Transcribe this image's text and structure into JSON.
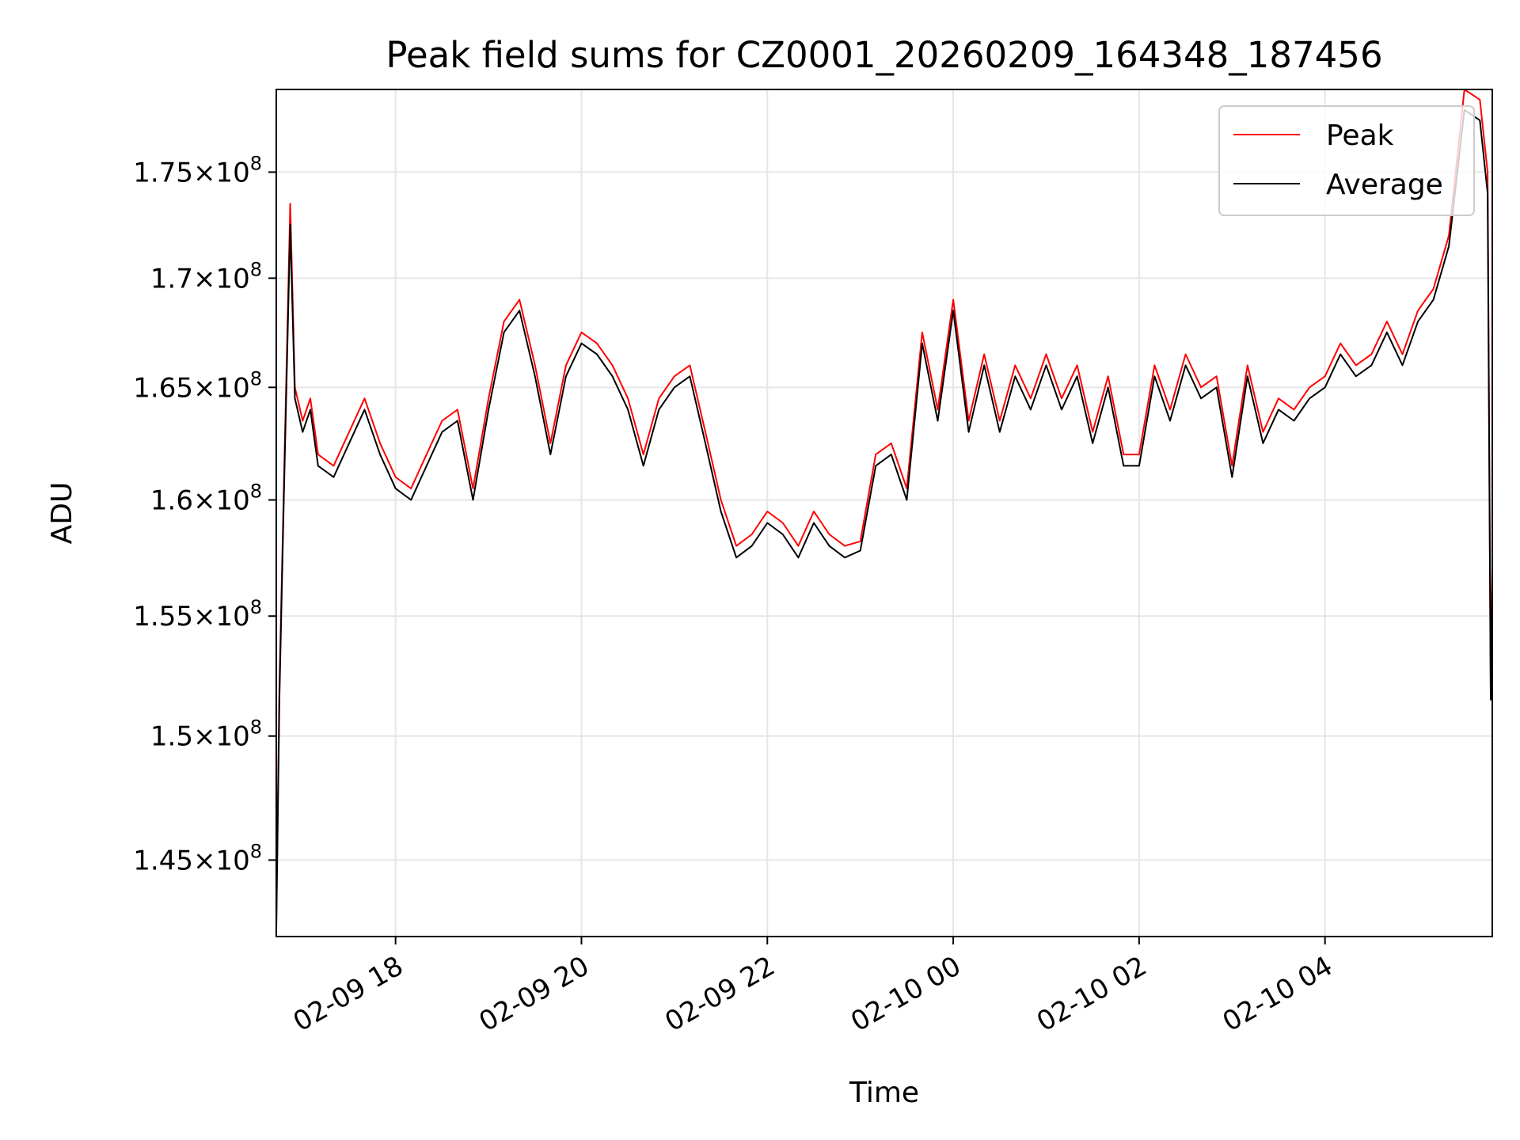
{
  "chart_data": {
    "type": "line",
    "title": "Peak field sums for CZ0001_20260209_164348_187456",
    "xlabel": "Time",
    "ylabel": "ADU",
    "x_axis_type": "datetime",
    "xlim": [
      "2026-02-09 16:43",
      "2026-02-10 05:48"
    ],
    "ylim": [
      142000000,
      179000000
    ],
    "y_scale": "log",
    "grid": true,
    "legend_position": "upper right",
    "x_ticks": [
      {
        "value": "2026-02-09 18:00",
        "label": "02-09 18"
      },
      {
        "value": "2026-02-09 20:00",
        "label": "02-09 20"
      },
      {
        "value": "2026-02-09 22:00",
        "label": "02-09 22"
      },
      {
        "value": "2026-02-10 00:00",
        "label": "02-10 00"
      },
      {
        "value": "2026-02-10 02:00",
        "label": "02-10 02"
      },
      {
        "value": "2026-02-10 04:00",
        "label": "02-10 04"
      }
    ],
    "y_ticks": [
      {
        "value": 145000000,
        "mantissa": "1.45",
        "exponent": "8"
      },
      {
        "value": 150000000,
        "mantissa": "1.5",
        "exponent": "8"
      },
      {
        "value": 155000000,
        "mantissa": "1.55",
        "exponent": "8"
      },
      {
        "value": 160000000,
        "mantissa": "1.6",
        "exponent": "8"
      },
      {
        "value": 165000000,
        "mantissa": "1.65",
        "exponent": "8"
      },
      {
        "value": 170000000,
        "mantissa": "1.7",
        "exponent": "8"
      },
      {
        "value": 175000000,
        "mantissa": "1.75",
        "exponent": "8"
      }
    ],
    "series": [
      {
        "name": "Peak",
        "color": "#ff0000",
        "x": [
          "2026-02-09 16:43",
          "2026-02-09 16:45",
          "2026-02-09 16:48",
          "2026-02-09 16:52",
          "2026-02-09 16:55",
          "2026-02-09 17:00",
          "2026-02-09 17:05",
          "2026-02-09 17:10",
          "2026-02-09 17:20",
          "2026-02-09 17:30",
          "2026-02-09 17:40",
          "2026-02-09 17:50",
          "2026-02-09 18:00",
          "2026-02-09 18:10",
          "2026-02-09 18:20",
          "2026-02-09 18:30",
          "2026-02-09 18:40",
          "2026-02-09 18:50",
          "2026-02-09 19:00",
          "2026-02-09 19:10",
          "2026-02-09 19:20",
          "2026-02-09 19:30",
          "2026-02-09 19:40",
          "2026-02-09 19:50",
          "2026-02-09 20:00",
          "2026-02-09 20:10",
          "2026-02-09 20:20",
          "2026-02-09 20:30",
          "2026-02-09 20:40",
          "2026-02-09 20:50",
          "2026-02-09 21:00",
          "2026-02-09 21:10",
          "2026-02-09 21:20",
          "2026-02-09 21:30",
          "2026-02-09 21:40",
          "2026-02-09 21:50",
          "2026-02-09 22:00",
          "2026-02-09 22:10",
          "2026-02-09 22:20",
          "2026-02-09 22:30",
          "2026-02-09 22:40",
          "2026-02-09 22:50",
          "2026-02-09 23:00",
          "2026-02-09 23:10",
          "2026-02-09 23:20",
          "2026-02-09 23:30",
          "2026-02-09 23:40",
          "2026-02-09 23:50",
          "2026-02-10 00:00",
          "2026-02-10 00:10",
          "2026-02-10 00:20",
          "2026-02-10 00:30",
          "2026-02-10 00:40",
          "2026-02-10 00:50",
          "2026-02-10 01:00",
          "2026-02-10 01:10",
          "2026-02-10 01:20",
          "2026-02-10 01:30",
          "2026-02-10 01:40",
          "2026-02-10 01:50",
          "2026-02-10 02:00",
          "2026-02-10 02:10",
          "2026-02-10 02:20",
          "2026-02-10 02:30",
          "2026-02-10 02:40",
          "2026-02-10 02:50",
          "2026-02-10 03:00",
          "2026-02-10 03:10",
          "2026-02-10 03:20",
          "2026-02-10 03:30",
          "2026-02-10 03:40",
          "2026-02-10 03:50",
          "2026-02-10 04:00",
          "2026-02-10 04:10",
          "2026-02-10 04:20",
          "2026-02-10 04:30",
          "2026-02-10 04:40",
          "2026-02-10 04:50",
          "2026-02-10 05:00",
          "2026-02-10 05:10",
          "2026-02-10 05:20",
          "2026-02-10 05:30",
          "2026-02-10 05:40",
          "2026-02-10 05:45",
          "2026-02-10 05:47",
          "2026-02-10 05:48"
        ],
        "values": [
          142500000,
          152000000,
          161000000,
          173500000,
          165000000,
          163500000,
          164500000,
          162000000,
          161500000,
          163000000,
          164500000,
          162500000,
          161000000,
          160500000,
          162000000,
          163500000,
          164000000,
          160500000,
          164500000,
          168000000,
          169000000,
          166000000,
          162500000,
          166000000,
          167500000,
          167000000,
          166000000,
          164500000,
          162000000,
          164500000,
          165500000,
          166000000,
          163000000,
          160000000,
          158000000,
          158500000,
          159500000,
          159000000,
          158000000,
          159500000,
          158500000,
          158000000,
          158200000,
          162000000,
          162500000,
          160500000,
          167500000,
          164000000,
          169000000,
          163500000,
          166500000,
          163500000,
          166000000,
          164500000,
          166500000,
          164500000,
          166000000,
          163000000,
          165500000,
          162000000,
          162000000,
          166000000,
          164000000,
          166500000,
          165000000,
          165500000,
          161500000,
          166000000,
          163000000,
          164500000,
          164000000,
          165000000,
          165500000,
          167000000,
          166000000,
          166500000,
          168000000,
          166500000,
          168500000,
          169500000,
          172000000,
          179000000,
          178500000,
          175000000,
          152000000,
          157000000
        ]
      },
      {
        "name": "Average",
        "color": "#000000",
        "x": [
          "2026-02-09 16:43",
          "2026-02-09 16:45",
          "2026-02-09 16:48",
          "2026-02-09 16:52",
          "2026-02-09 16:55",
          "2026-02-09 17:00",
          "2026-02-09 17:05",
          "2026-02-09 17:10",
          "2026-02-09 17:20",
          "2026-02-09 17:30",
          "2026-02-09 17:40",
          "2026-02-09 17:50",
          "2026-02-09 18:00",
          "2026-02-09 18:10",
          "2026-02-09 18:20",
          "2026-02-09 18:30",
          "2026-02-09 18:40",
          "2026-02-09 18:50",
          "2026-02-09 19:00",
          "2026-02-09 19:10",
          "2026-02-09 19:20",
          "2026-02-09 19:30",
          "2026-02-09 19:40",
          "2026-02-09 19:50",
          "2026-02-09 20:00",
          "2026-02-09 20:10",
          "2026-02-09 20:20",
          "2026-02-09 20:30",
          "2026-02-09 20:40",
          "2026-02-09 20:50",
          "2026-02-09 21:00",
          "2026-02-09 21:10",
          "2026-02-09 21:20",
          "2026-02-09 21:30",
          "2026-02-09 21:40",
          "2026-02-09 21:50",
          "2026-02-09 22:00",
          "2026-02-09 22:10",
          "2026-02-09 22:20",
          "2026-02-09 22:30",
          "2026-02-09 22:40",
          "2026-02-09 22:50",
          "2026-02-09 23:00",
          "2026-02-09 23:10",
          "2026-02-09 23:20",
          "2026-02-09 23:30",
          "2026-02-09 23:40",
          "2026-02-09 23:50",
          "2026-02-10 00:00",
          "2026-02-10 00:10",
          "2026-02-10 00:20",
          "2026-02-10 00:30",
          "2026-02-10 00:40",
          "2026-02-10 00:50",
          "2026-02-10 01:00",
          "2026-02-10 01:10",
          "2026-02-10 01:20",
          "2026-02-10 01:30",
          "2026-02-10 01:40",
          "2026-02-10 01:50",
          "2026-02-10 02:00",
          "2026-02-10 02:10",
          "2026-02-10 02:20",
          "2026-02-10 02:30",
          "2026-02-10 02:40",
          "2026-02-10 02:50",
          "2026-02-10 03:00",
          "2026-02-10 03:10",
          "2026-02-10 03:20",
          "2026-02-10 03:30",
          "2026-02-10 03:40",
          "2026-02-10 03:50",
          "2026-02-10 04:00",
          "2026-02-10 04:10",
          "2026-02-10 04:20",
          "2026-02-10 04:30",
          "2026-02-10 04:40",
          "2026-02-10 04:50",
          "2026-02-10 05:00",
          "2026-02-10 05:10",
          "2026-02-10 05:20",
          "2026-02-10 05:30",
          "2026-02-10 05:40",
          "2026-02-10 05:45",
          "2026-02-10 05:47",
          "2026-02-10 05:48"
        ],
        "values": [
          142300000,
          151500000,
          160500000,
          172500000,
          164500000,
          163000000,
          164000000,
          161500000,
          161000000,
          162500000,
          164000000,
          162000000,
          160500000,
          160000000,
          161500000,
          163000000,
          163500000,
          160000000,
          164000000,
          167500000,
          168500000,
          165500000,
          162000000,
          165500000,
          167000000,
          166500000,
          165500000,
          164000000,
          161500000,
          164000000,
          165000000,
          165500000,
          162500000,
          159500000,
          157500000,
          158000000,
          159000000,
          158500000,
          157500000,
          159000000,
          158000000,
          157500000,
          157800000,
          161500000,
          162000000,
          160000000,
          167000000,
          163500000,
          168500000,
          163000000,
          166000000,
          163000000,
          165500000,
          164000000,
          166000000,
          164000000,
          165500000,
          162500000,
          165000000,
          161500000,
          161500000,
          165500000,
          163500000,
          166000000,
          164500000,
          165000000,
          161000000,
          165500000,
          162500000,
          164000000,
          163500000,
          164500000,
          165000000,
          166500000,
          165500000,
          166000000,
          167500000,
          166000000,
          168000000,
          169000000,
          171500000,
          178000000,
          177500000,
          174000000,
          151500000,
          156500000
        ]
      }
    ]
  }
}
